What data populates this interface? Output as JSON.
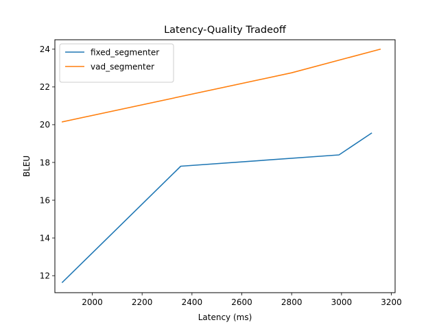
{
  "chart_data": {
    "type": "line",
    "title": "Latency-Quality Tradeoff",
    "xlabel": "Latency (ms)",
    "ylabel": "BLEU",
    "xlim": [
      1850,
      3215
    ],
    "ylim": [
      11.1,
      24.5
    ],
    "xticks": [
      2000,
      2200,
      2400,
      2600,
      2800,
      3000,
      3200
    ],
    "yticks": [
      12,
      14,
      16,
      18,
      20,
      22,
      24
    ],
    "grid": false,
    "legend_position": "top-left",
    "series": [
      {
        "name": "fixed_segmenter",
        "color": "#1f77b4",
        "x": [
          1880,
          2355,
          2990,
          3120
        ],
        "y": [
          11.65,
          17.8,
          18.4,
          19.55
        ]
      },
      {
        "name": "vad_segmenter",
        "color": "#ff7f0e",
        "x": [
          1880,
          2800,
          3155
        ],
        "y": [
          20.15,
          22.75,
          24.0
        ]
      }
    ]
  }
}
